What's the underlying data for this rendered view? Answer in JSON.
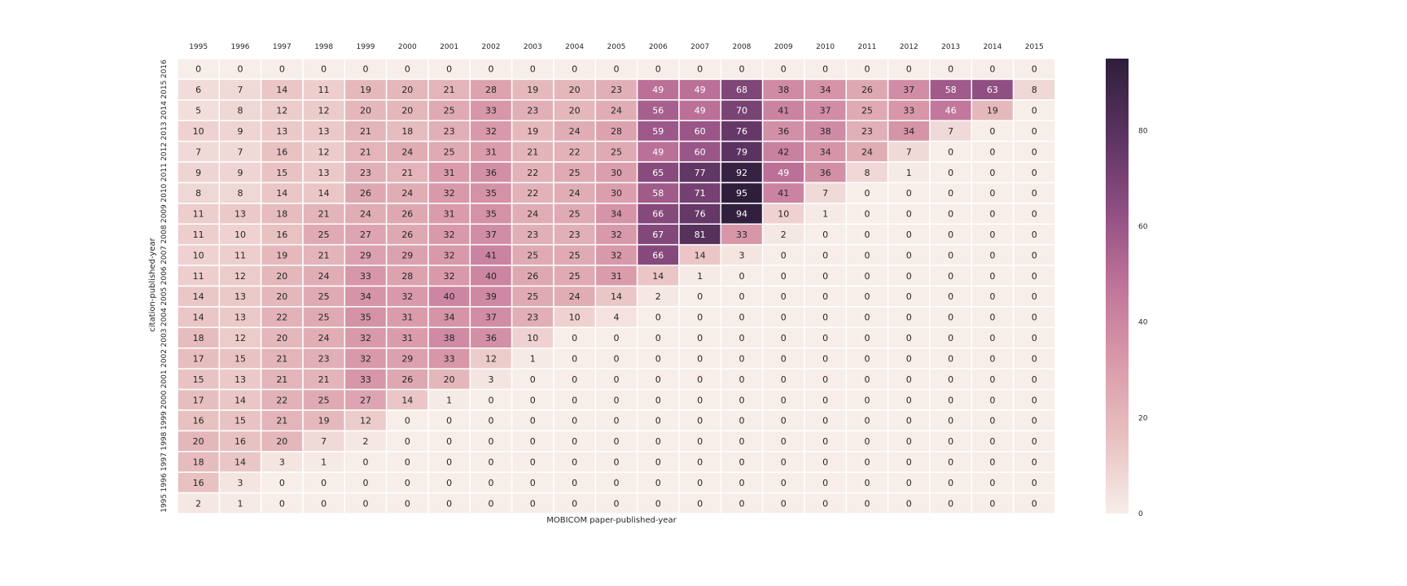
{
  "chart_data": {
    "type": "heatmap",
    "title": "",
    "xlabel": "MOBICOM paper-published-year",
    "ylabel": "citation-published-year",
    "x": [
      "1995",
      "1996",
      "1997",
      "1998",
      "1999",
      "2000",
      "2001",
      "2002",
      "2003",
      "2004",
      "2005",
      "2006",
      "2007",
      "2008",
      "2009",
      "2010",
      "2011",
      "2012",
      "2013",
      "2014",
      "2015"
    ],
    "y": [
      "2016",
      "2015",
      "2014",
      "2013",
      "2012",
      "2011",
      "2010",
      "2009",
      "2008",
      "2007",
      "2006",
      "2005",
      "2004",
      "2003",
      "2002",
      "2001",
      "2000",
      "1999",
      "1998",
      "1997",
      "1996",
      "1995"
    ],
    "values": [
      [
        0,
        0,
        0,
        0,
        0,
        0,
        0,
        0,
        0,
        0,
        0,
        0,
        0,
        0,
        0,
        0,
        0,
        0,
        0,
        0,
        0
      ],
      [
        6,
        7,
        14,
        11,
        19,
        20,
        21,
        28,
        19,
        20,
        23,
        49,
        49,
        68,
        38,
        34,
        26,
        37,
        58,
        63,
        8
      ],
      [
        5,
        8,
        12,
        12,
        20,
        20,
        25,
        33,
        23,
        20,
        24,
        56,
        49,
        70,
        41,
        37,
        25,
        33,
        46,
        19,
        0
      ],
      [
        10,
        9,
        13,
        13,
        21,
        18,
        23,
        32,
        19,
        24,
        28,
        59,
        60,
        76,
        36,
        38,
        23,
        34,
        7,
        0,
        0
      ],
      [
        7,
        7,
        16,
        12,
        21,
        24,
        25,
        31,
        21,
        22,
        25,
        49,
        60,
        79,
        42,
        34,
        24,
        7,
        0,
        0,
        0
      ],
      [
        9,
        9,
        15,
        13,
        23,
        21,
        31,
        36,
        22,
        25,
        30,
        65,
        77,
        92,
        49,
        36,
        8,
        1,
        0,
        0,
        0
      ],
      [
        8,
        8,
        14,
        14,
        26,
        24,
        32,
        35,
        22,
        24,
        30,
        58,
        71,
        95,
        41,
        7,
        0,
        0,
        0,
        0,
        0
      ],
      [
        11,
        13,
        18,
        21,
        24,
        26,
        31,
        35,
        24,
        25,
        34,
        66,
        76,
        94,
        10,
        1,
        0,
        0,
        0,
        0,
        0
      ],
      [
        11,
        10,
        16,
        25,
        27,
        26,
        32,
        37,
        23,
        23,
        32,
        67,
        81,
        33,
        2,
        0,
        0,
        0,
        0,
        0,
        0
      ],
      [
        10,
        11,
        19,
        21,
        29,
        29,
        32,
        41,
        25,
        25,
        32,
        66,
        14,
        3,
        0,
        0,
        0,
        0,
        0,
        0,
        0
      ],
      [
        11,
        12,
        20,
        24,
        33,
        28,
        32,
        40,
        26,
        25,
        31,
        14,
        1,
        0,
        0,
        0,
        0,
        0,
        0,
        0,
        0
      ],
      [
        14,
        13,
        20,
        25,
        34,
        32,
        40,
        39,
        25,
        24,
        14,
        2,
        0,
        0,
        0,
        0,
        0,
        0,
        0,
        0,
        0
      ],
      [
        14,
        13,
        22,
        25,
        35,
        31,
        34,
        37,
        23,
        10,
        4,
        0,
        0,
        0,
        0,
        0,
        0,
        0,
        0,
        0,
        0
      ],
      [
        18,
        12,
        20,
        24,
        32,
        31,
        38,
        36,
        10,
        0,
        0,
        0,
        0,
        0,
        0,
        0,
        0,
        0,
        0,
        0,
        0
      ],
      [
        17,
        15,
        21,
        23,
        32,
        29,
        33,
        12,
        1,
        0,
        0,
        0,
        0,
        0,
        0,
        0,
        0,
        0,
        0,
        0,
        0
      ],
      [
        15,
        13,
        21,
        21,
        33,
        26,
        20,
        3,
        0,
        0,
        0,
        0,
        0,
        0,
        0,
        0,
        0,
        0,
        0,
        0,
        0
      ],
      [
        17,
        14,
        22,
        25,
        27,
        14,
        1,
        0,
        0,
        0,
        0,
        0,
        0,
        0,
        0,
        0,
        0,
        0,
        0,
        0,
        0
      ],
      [
        16,
        15,
        21,
        19,
        12,
        0,
        0,
        0,
        0,
        0,
        0,
        0,
        0,
        0,
        0,
        0,
        0,
        0,
        0,
        0,
        0
      ],
      [
        20,
        16,
        20,
        7,
        2,
        0,
        0,
        0,
        0,
        0,
        0,
        0,
        0,
        0,
        0,
        0,
        0,
        0,
        0,
        0,
        0
      ],
      [
        18,
        14,
        3,
        1,
        0,
        0,
        0,
        0,
        0,
        0,
        0,
        0,
        0,
        0,
        0,
        0,
        0,
        0,
        0,
        0,
        0
      ],
      [
        16,
        3,
        0,
        0,
        0,
        0,
        0,
        0,
        0,
        0,
        0,
        0,
        0,
        0,
        0,
        0,
        0,
        0,
        0,
        0,
        0
      ],
      [
        2,
        1,
        0,
        0,
        0,
        0,
        0,
        0,
        0,
        0,
        0,
        0,
        0,
        0,
        0,
        0,
        0,
        0,
        0,
        0,
        0
      ]
    ],
    "vmin": 0,
    "vmax": 95,
    "colorbar_ticks": [
      0,
      20,
      40,
      60,
      80
    ],
    "colormap": [
      "#f7ede9",
      "#e8c1c1",
      "#d99aaa",
      "#c0749a",
      "#8f4e82",
      "#5a3360",
      "#2e1e3b"
    ],
    "x_axis_position": "top",
    "legend": "colorbar-right",
    "grid": false
  }
}
